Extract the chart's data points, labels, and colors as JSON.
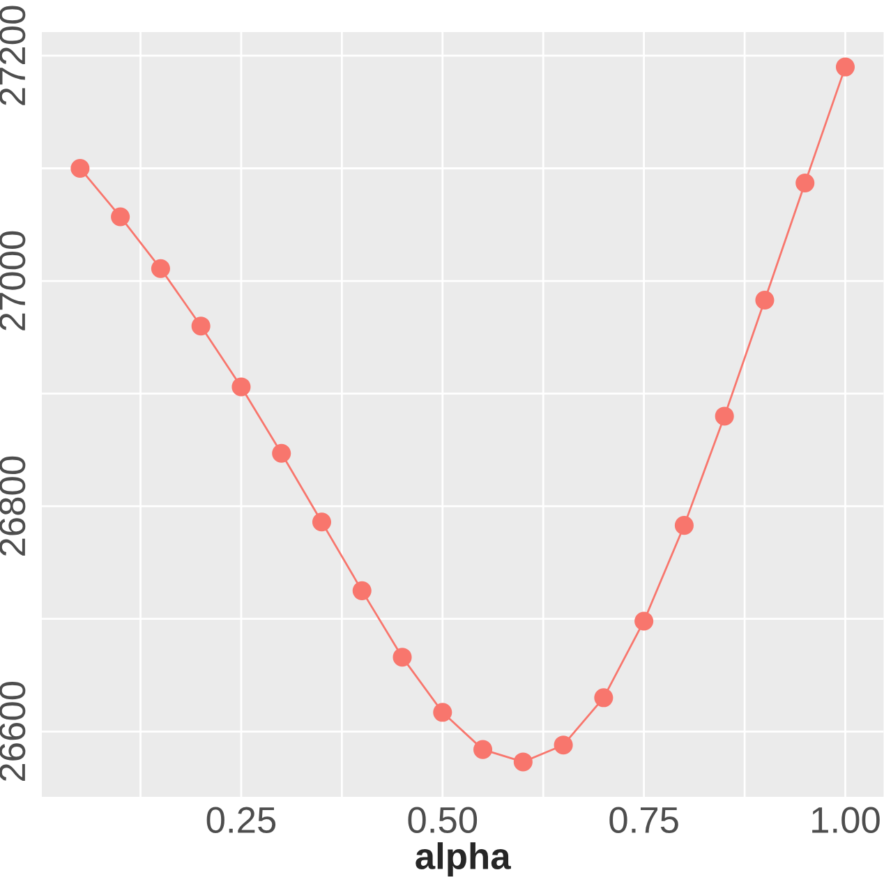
{
  "chart_data": {
    "type": "line",
    "xlabel": "alpha",
    "x": [
      0.05,
      0.1,
      0.15,
      0.2,
      0.25,
      0.3,
      0.35,
      0.4,
      0.45,
      0.5,
      0.55,
      0.6,
      0.65,
      0.7,
      0.75,
      0.8,
      0.85,
      0.9,
      0.95,
      1.0
    ],
    "series": [
      {
        "color": "#f8766d",
        "values": [
          27100,
          27057,
          27011,
          26960,
          26906,
          26847,
          26786,
          26725,
          26666,
          26617,
          26584,
          26573,
          26588,
          26630,
          26698,
          26783,
          26880,
          26983,
          27087,
          27190
        ]
      }
    ],
    "xlim": [
      0.0025,
      1.0475
    ],
    "ylim": [
      26542,
      27221
    ],
    "xticks": [
      {
        "value": 0.125,
        "label": null
      },
      {
        "value": 0.25,
        "label": "0.25"
      },
      {
        "value": 0.375,
        "label": null
      },
      {
        "value": 0.5,
        "label": "0.50"
      },
      {
        "value": 0.625,
        "label": null
      },
      {
        "value": 0.75,
        "label": "0.75"
      },
      {
        "value": 0.875,
        "label": null
      },
      {
        "value": 1.0,
        "label": "1.00"
      }
    ],
    "yticks": [
      26600,
      {
        "value": 26700,
        "label": null
      },
      26800,
      {
        "value": 26900,
        "label": null
      },
      27000,
      {
        "value": 27100,
        "label": null
      },
      27200
    ],
    "grid": true,
    "marker": "circle",
    "line_style": "solid",
    "legend": false
  }
}
